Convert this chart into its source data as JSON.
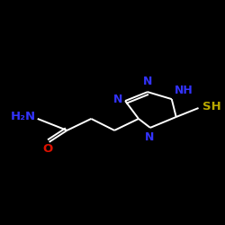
{
  "background_color": "#000000",
  "bond_color": "#ffffff",
  "figsize": [
    2.5,
    2.5
  ],
  "dpi": 100,
  "bond_lw": 1.4,
  "atom_labels": {
    "NH2": {
      "color": "#3333ff",
      "fontsize": 9.5
    },
    "O": {
      "color": "#dd1100",
      "fontsize": 9.5
    },
    "N_top_left": {
      "color": "#3333ff",
      "fontsize": 9.0,
      "label": "N"
    },
    "N_top_right": {
      "color": "#3333ff",
      "fontsize": 9.0,
      "label": "NH"
    },
    "N_bottom": {
      "color": "#3333ff",
      "fontsize": 9.0,
      "label": "N"
    },
    "SH": {
      "color": "#bbaa00",
      "fontsize": 9.5,
      "label": "SH"
    }
  }
}
